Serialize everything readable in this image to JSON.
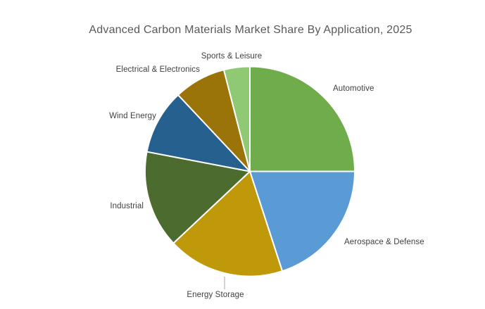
{
  "chart_data": {
    "type": "pie",
    "title": "Advanced Carbon Materials Market Share By Application, 2025",
    "categories": [
      "Automotive",
      "Aerospace & Defense",
      "Energy Storage",
      "Industrial",
      "Wind Energy",
      "Electrical & Electronics",
      "Sports & Leisure"
    ],
    "values": [
      25,
      20,
      18,
      15,
      10,
      8,
      4
    ],
    "unit": "percent-share",
    "slice_colors": [
      "#6FAC4C",
      "#5B9BD5",
      "#C0990A",
      "#4C6B2F",
      "#25608F",
      "#9A7409",
      "#8FC974"
    ],
    "title_color": "#595959",
    "label_color": "#404040",
    "leader_line_color": "#A6A6A6",
    "background_color": "#FFFFFF",
    "legend": "none",
    "data_labels": "category-names-outside-end",
    "start_angle_deg": 0,
    "direction": "clockwise"
  }
}
